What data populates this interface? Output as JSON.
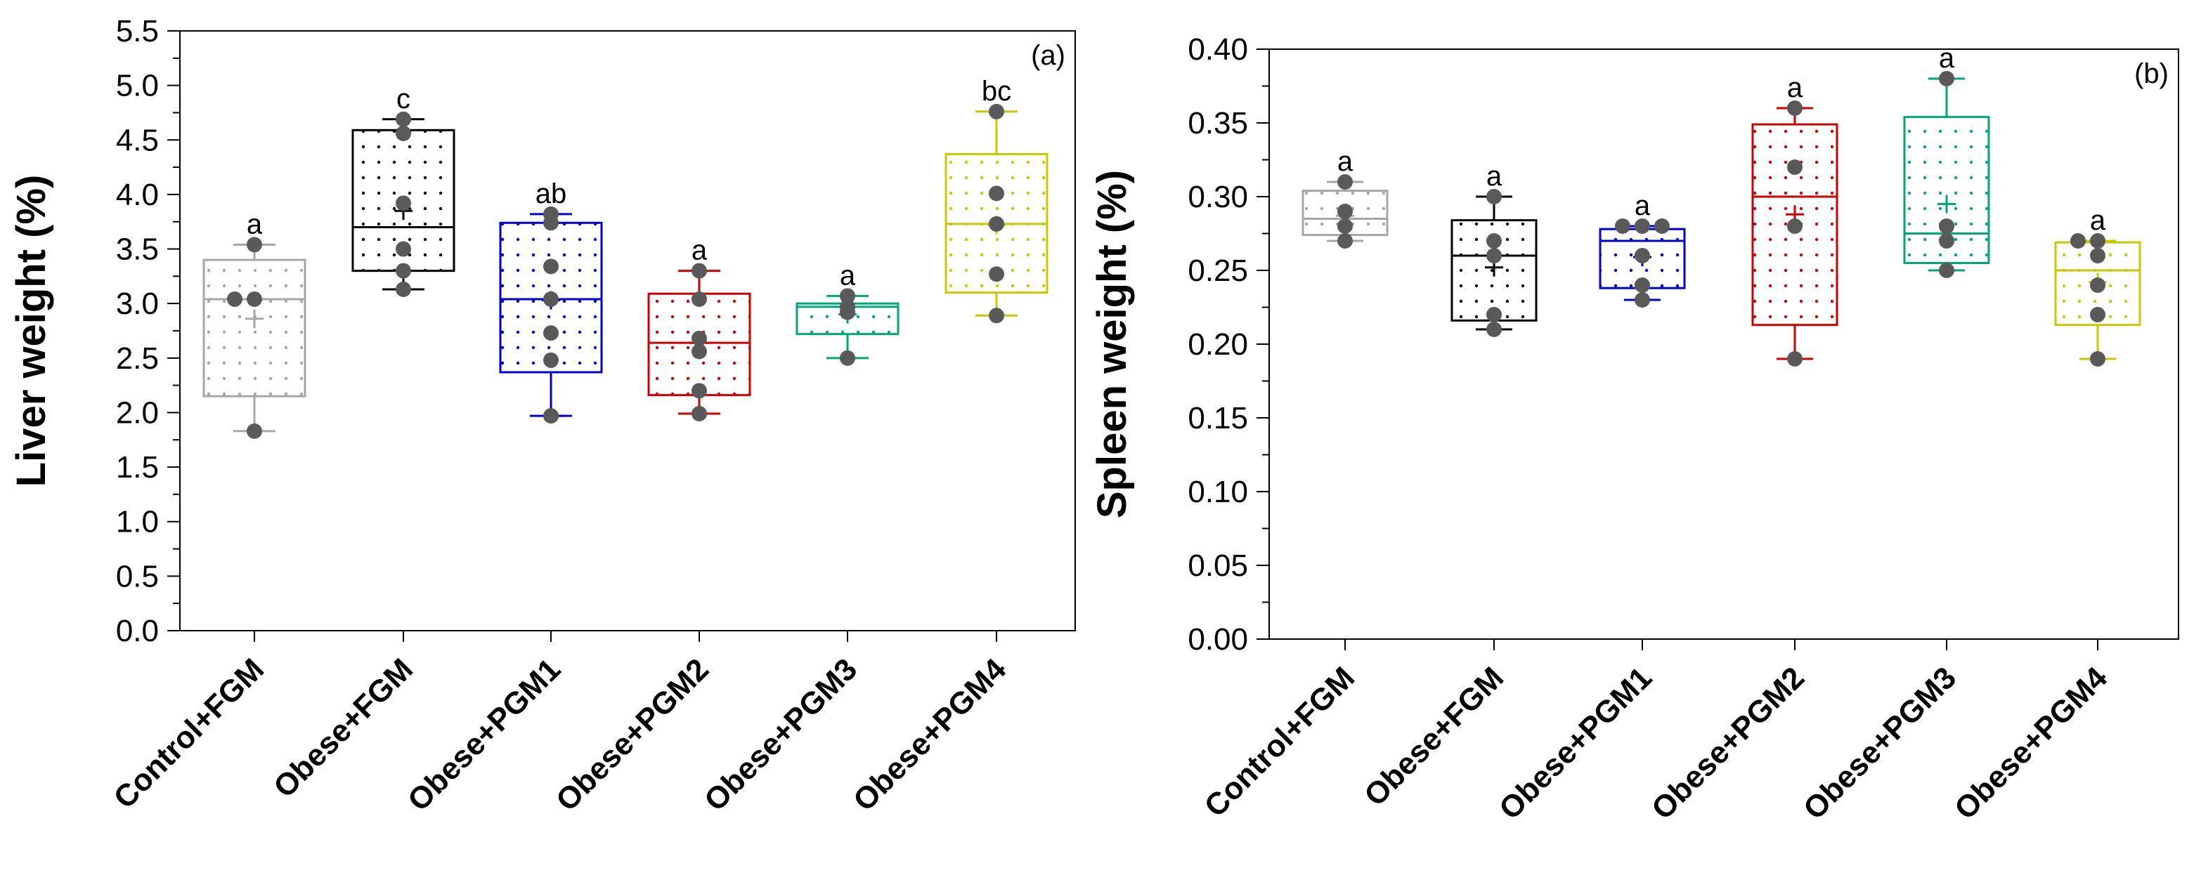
{
  "chart_data": [
    {
      "type": "box",
      "panel_label": "(a)",
      "ylabel": "Liver weight (%)",
      "ylim": [
        0,
        5.5
      ],
      "ytick_step": 0.5,
      "ytick_labels": [
        "0.0",
        "0.5",
        "1.0",
        "1.5",
        "2.0",
        "2.5",
        "3.0",
        "3.5",
        "4.0",
        "4.5",
        "5.0",
        "5.5"
      ],
      "grid": false,
      "categories": [
        "Control+FGM",
        "Obese+FGM",
        "Obese+PGM1",
        "Obese+PGM2",
        "Obese+PGM3",
        "Obese+PGM4"
      ],
      "groups": [
        {
          "name": "Control+FGM",
          "color": "#a6a6a6",
          "whisker_low": 1.83,
          "q1": 2.15,
          "median": 3.04,
          "q3": 3.4,
          "whisker_high": 3.54,
          "mean": 2.86,
          "points": [
            1.83,
            3.04,
            3.04,
            3.54
          ],
          "significance": "a"
        },
        {
          "name": "Obese+FGM",
          "color": "#000000",
          "whisker_low": 3.13,
          "q1": 3.3,
          "median": 3.7,
          "q3": 4.59,
          "whisker_high": 4.69,
          "mean": 3.85,
          "points": [
            3.13,
            3.3,
            3.5,
            3.92,
            4.56,
            4.69
          ],
          "significance": "c"
        },
        {
          "name": "Obese+PGM1",
          "color": "#0000cc",
          "whisker_low": 1.97,
          "q1": 2.37,
          "median": 3.04,
          "q3": 3.74,
          "whisker_high": 3.82,
          "mean": 3.03,
          "points": [
            1.97,
            2.48,
            2.73,
            3.04,
            3.34,
            3.74,
            3.82
          ],
          "significance": "ab"
        },
        {
          "name": "Obese+PGM2",
          "color": "#cc0000",
          "whisker_low": 1.99,
          "q1": 2.16,
          "median": 2.64,
          "q3": 3.09,
          "whisker_high": 3.3,
          "mean": 2.64,
          "points": [
            1.99,
            2.2,
            2.56,
            2.68,
            3.04,
            3.3
          ],
          "significance": "a"
        },
        {
          "name": "Obese+PGM3",
          "color": "#00a67a",
          "whisker_low": 2.5,
          "q1": 2.72,
          "median": 2.97,
          "q3": 3.0,
          "whisker_high": 3.07,
          "mean": 2.9,
          "points": [
            2.5,
            2.92,
            2.97,
            3.07
          ],
          "significance": "a"
        },
        {
          "name": "Obese+PGM4",
          "color": "#c8c800",
          "whisker_low": 2.89,
          "q1": 3.1,
          "median": 3.73,
          "q3": 4.37,
          "whisker_high": 4.76,
          "mean": 3.72,
          "points": [
            2.89,
            3.27,
            3.73,
            4.01,
            4.76
          ],
          "significance": "bc"
        }
      ]
    },
    {
      "type": "box",
      "panel_label": "(b)",
      "ylabel": "Spleen weight (%)",
      "ylim": [
        0,
        0.4
      ],
      "ytick_step": 0.05,
      "ytick_labels": [
        "0.00",
        "0.05",
        "0.10",
        "0.15",
        "0.20",
        "0.25",
        "0.30",
        "0.35",
        "0.40"
      ],
      "grid": false,
      "categories": [
        "Control+FGM",
        "Obese+FGM",
        "Obese+PGM1",
        "Obese+PGM2",
        "Obese+PGM3",
        "Obese+PGM4"
      ],
      "groups": [
        {
          "name": "Control+FGM",
          "color": "#a6a6a6",
          "whisker_low": 0.27,
          "q1": 0.274,
          "median": 0.285,
          "q3": 0.304,
          "whisker_high": 0.31,
          "mean": 0.287,
          "points": [
            0.27,
            0.28,
            0.29,
            0.31
          ],
          "significance": "a"
        },
        {
          "name": "Obese+FGM",
          "color": "#000000",
          "whisker_low": 0.21,
          "q1": 0.216,
          "median": 0.26,
          "q3": 0.284,
          "whisker_high": 0.3,
          "mean": 0.252,
          "points": [
            0.21,
            0.22,
            0.26,
            0.27,
            0.3
          ],
          "significance": "a"
        },
        {
          "name": "Obese+PGM1",
          "color": "#0000cc",
          "whisker_low": 0.23,
          "q1": 0.238,
          "median": 0.27,
          "q3": 0.278,
          "whisker_high": 0.28,
          "mean": 0.259,
          "points": [
            0.23,
            0.24,
            0.26,
            0.28,
            0.28,
            0.28
          ],
          "significance": "a"
        },
        {
          "name": "Obese+PGM2",
          "color": "#cc0000",
          "whisker_low": 0.19,
          "q1": 0.213,
          "median": 0.3,
          "q3": 0.349,
          "whisker_high": 0.36,
          "mean": 0.288,
          "points": [
            0.19,
            0.28,
            0.32,
            0.36
          ],
          "significance": "a"
        },
        {
          "name": "Obese+PGM3",
          "color": "#00a67a",
          "whisker_low": 0.25,
          "q1": 0.255,
          "median": 0.275,
          "q3": 0.354,
          "whisker_high": 0.38,
          "mean": 0.295,
          "points": [
            0.25,
            0.27,
            0.28,
            0.38
          ],
          "significance": "a"
        },
        {
          "name": "Obese+PGM4",
          "color": "#c8c800",
          "whisker_low": 0.19,
          "q1": 0.213,
          "median": 0.25,
          "q3": 0.269,
          "whisker_high": 0.27,
          "mean": 0.242,
          "points": [
            0.19,
            0.22,
            0.24,
            0.26,
            0.27,
            0.27
          ],
          "significance": "a"
        }
      ]
    }
  ]
}
